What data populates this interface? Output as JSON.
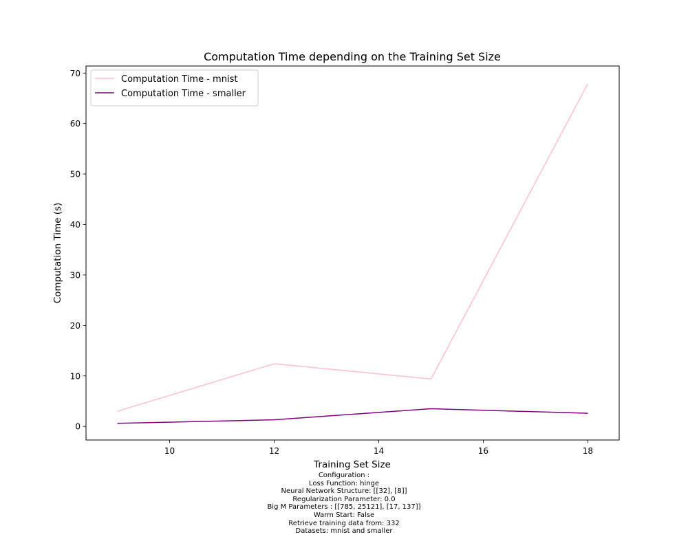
{
  "chart_data": {
    "type": "line",
    "title": "Computation Time depending on the Training Set Size",
    "xlabel": "Training Set Size",
    "ylabel": "Computation Time (s)",
    "x": [
      9,
      12,
      15,
      18
    ],
    "xlim": [
      8.4,
      18.6
    ],
    "ylim": [
      -2.7,
      71.4
    ],
    "xticks": [
      10,
      12,
      14,
      16,
      18
    ],
    "yticks": [
      0,
      10,
      20,
      30,
      40,
      50,
      60,
      70
    ],
    "grid": false,
    "legend_position": "upper-left",
    "series": [
      {
        "name": "Computation Time - mnist",
        "values": [
          3.0,
          12.4,
          9.4,
          67.9
        ],
        "color": "#ffc0cb"
      },
      {
        "name": "Computation Time - smaller",
        "values": [
          0.6,
          1.3,
          3.5,
          2.6
        ],
        "color": "#800080"
      }
    ]
  },
  "caption": {
    "lines": [
      "Configuration :",
      "Loss Function: hinge",
      "Neural Network Structure: [[32], [8]]",
      "Regularization Parameter: 0.0",
      "Big M Parameters : [[785, 25121], [17, 137]]",
      "Warm Start: False",
      "Retrieve training data from: 332",
      "Datasets: mnist and smaller"
    ]
  }
}
